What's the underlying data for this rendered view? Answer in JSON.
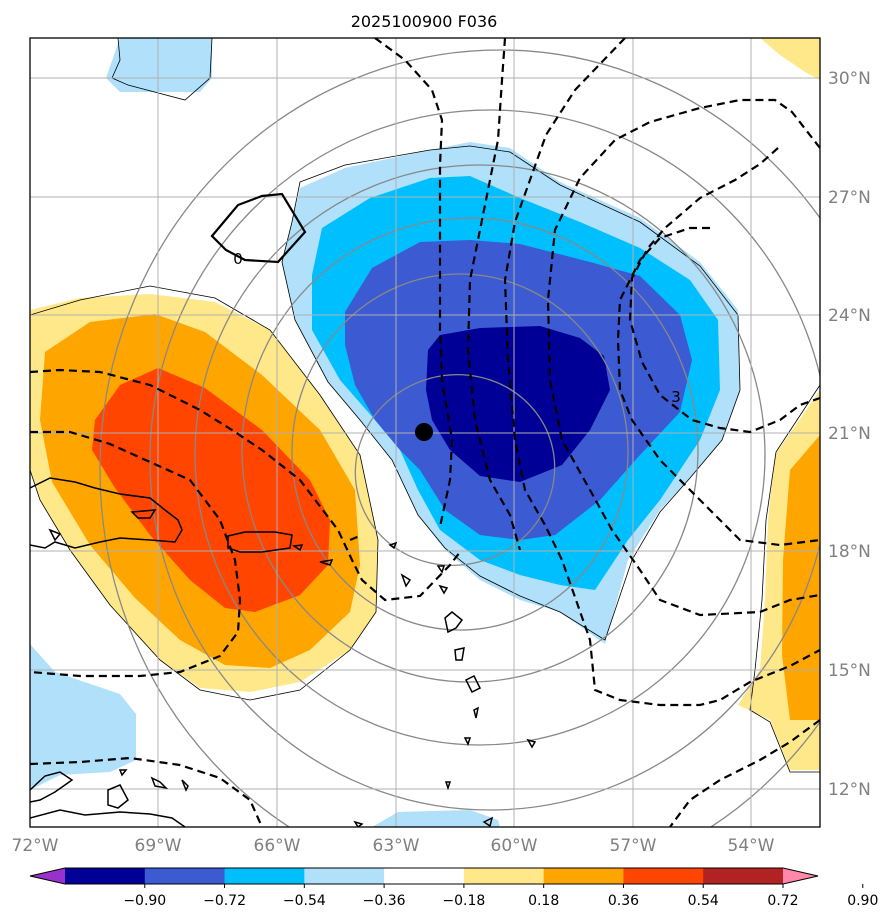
{
  "title": "2025100900 F036",
  "map": {
    "lon_labels": [
      "72°W",
      "69°W",
      "66°W",
      "63°W",
      "60°W",
      "57°W",
      "54°W"
    ],
    "lat_labels": [
      "30°N",
      "27°N",
      "24°N",
      "21°N",
      "18°N",
      "15°N",
      "12°N"
    ],
    "contour_labels": [
      "0",
      "3"
    ],
    "center_marker": {
      "name": "storm-center",
      "lon": -62.3,
      "lat": 21.1
    }
  },
  "colorbar": {
    "ticks": [
      "−0.90",
      "−0.72",
      "−0.54",
      "−0.36",
      "−0.18",
      "0.18",
      "0.36",
      "0.54",
      "0.72",
      "0.90"
    ],
    "colors": [
      "#9932cc",
      "#000096",
      "#3c5ad2",
      "#00bfff",
      "#b0e0fa",
      "#ffffff",
      "#ffe88a",
      "#ffa500",
      "#ff4500",
      "#b22222",
      "#ff88aa"
    ]
  },
  "chart_data": {
    "type": "heatmap",
    "title": "2025100900 F036",
    "xlabel": "",
    "ylabel": "",
    "xlim": [
      -72,
      -52
    ],
    "ylim": [
      11,
      31
    ],
    "levels": [
      -0.9,
      -0.72,
      -0.54,
      -0.36,
      -0.18,
      0.18,
      0.36,
      0.54,
      0.72,
      0.9
    ],
    "extend": "both",
    "grid": true,
    "overlays": [
      "dashed contours",
      "thin gray contours",
      "coastlines",
      "center dot"
    ]
  }
}
